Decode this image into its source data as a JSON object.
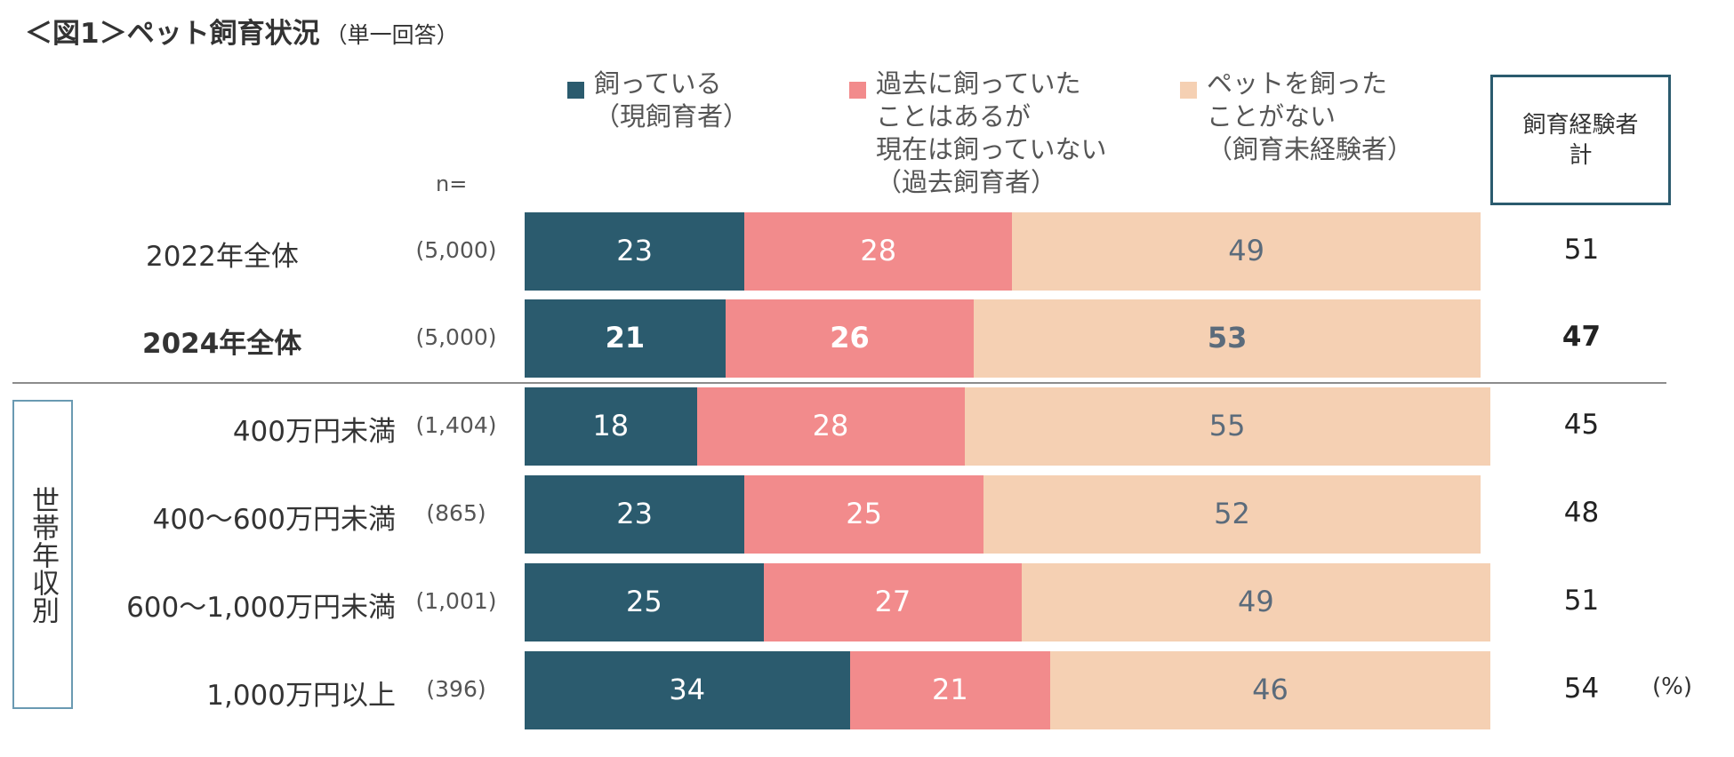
{
  "title": "＜図1＞ペット飼育状況",
  "title_sub": "（単一回答）",
  "n_label": "n=",
  "unit_label": "(%)",
  "total_header": "飼育経験者\n計",
  "group_label": "世帯年収別",
  "colors": {
    "current": "#2b5b6e",
    "past": "#f28b8c",
    "never": "#f5d0b3",
    "text_light": "#ffffff",
    "text_dark": "#5b6b7b"
  },
  "chart_data": {
    "type": "bar",
    "orientation": "horizontal",
    "stacked": true,
    "normalized_to": 100,
    "title": "＜図1＞ペット飼育状況",
    "xlabel": "",
    "ylabel": "",
    "unit": "%",
    "series": [
      {
        "key": "current",
        "name": "飼っている\n（現飼育者）",
        "color": "#2b5b6e",
        "values": [
          23,
          21,
          18,
          23,
          25,
          34
        ]
      },
      {
        "key": "past",
        "name": "過去に飼っていた\nことはあるが\n現在は飼っていない\n（過去飼育者）",
        "color": "#f28b8c",
        "values": [
          28,
          26,
          28,
          25,
          27,
          21
        ]
      },
      {
        "key": "never",
        "name": "ペットを飼った\nことがない\n（飼育未経験者）",
        "color": "#f5d0b3",
        "values": [
          49,
          53,
          55,
          52,
          49,
          46
        ]
      }
    ],
    "rows": [
      {
        "label": "2022年全体",
        "n": "(5,000)",
        "total": "51",
        "bold": false
      },
      {
        "label": "2024年全体",
        "n": "(5,000)",
        "total": "47",
        "bold": true
      },
      {
        "label": "400万円未満",
        "n": "(1,404)",
        "total": "45",
        "bold": false
      },
      {
        "label": "400～600万円未満",
        "n": "(865)",
        "total": "48",
        "bold": false
      },
      {
        "label": "600～1,000万円未満",
        "n": "(1,001)",
        "total": "51",
        "bold": false
      },
      {
        "label": "1,000万円以上",
        "n": "(396)",
        "total": "54",
        "bold": false
      }
    ],
    "legend_position": "top"
  }
}
